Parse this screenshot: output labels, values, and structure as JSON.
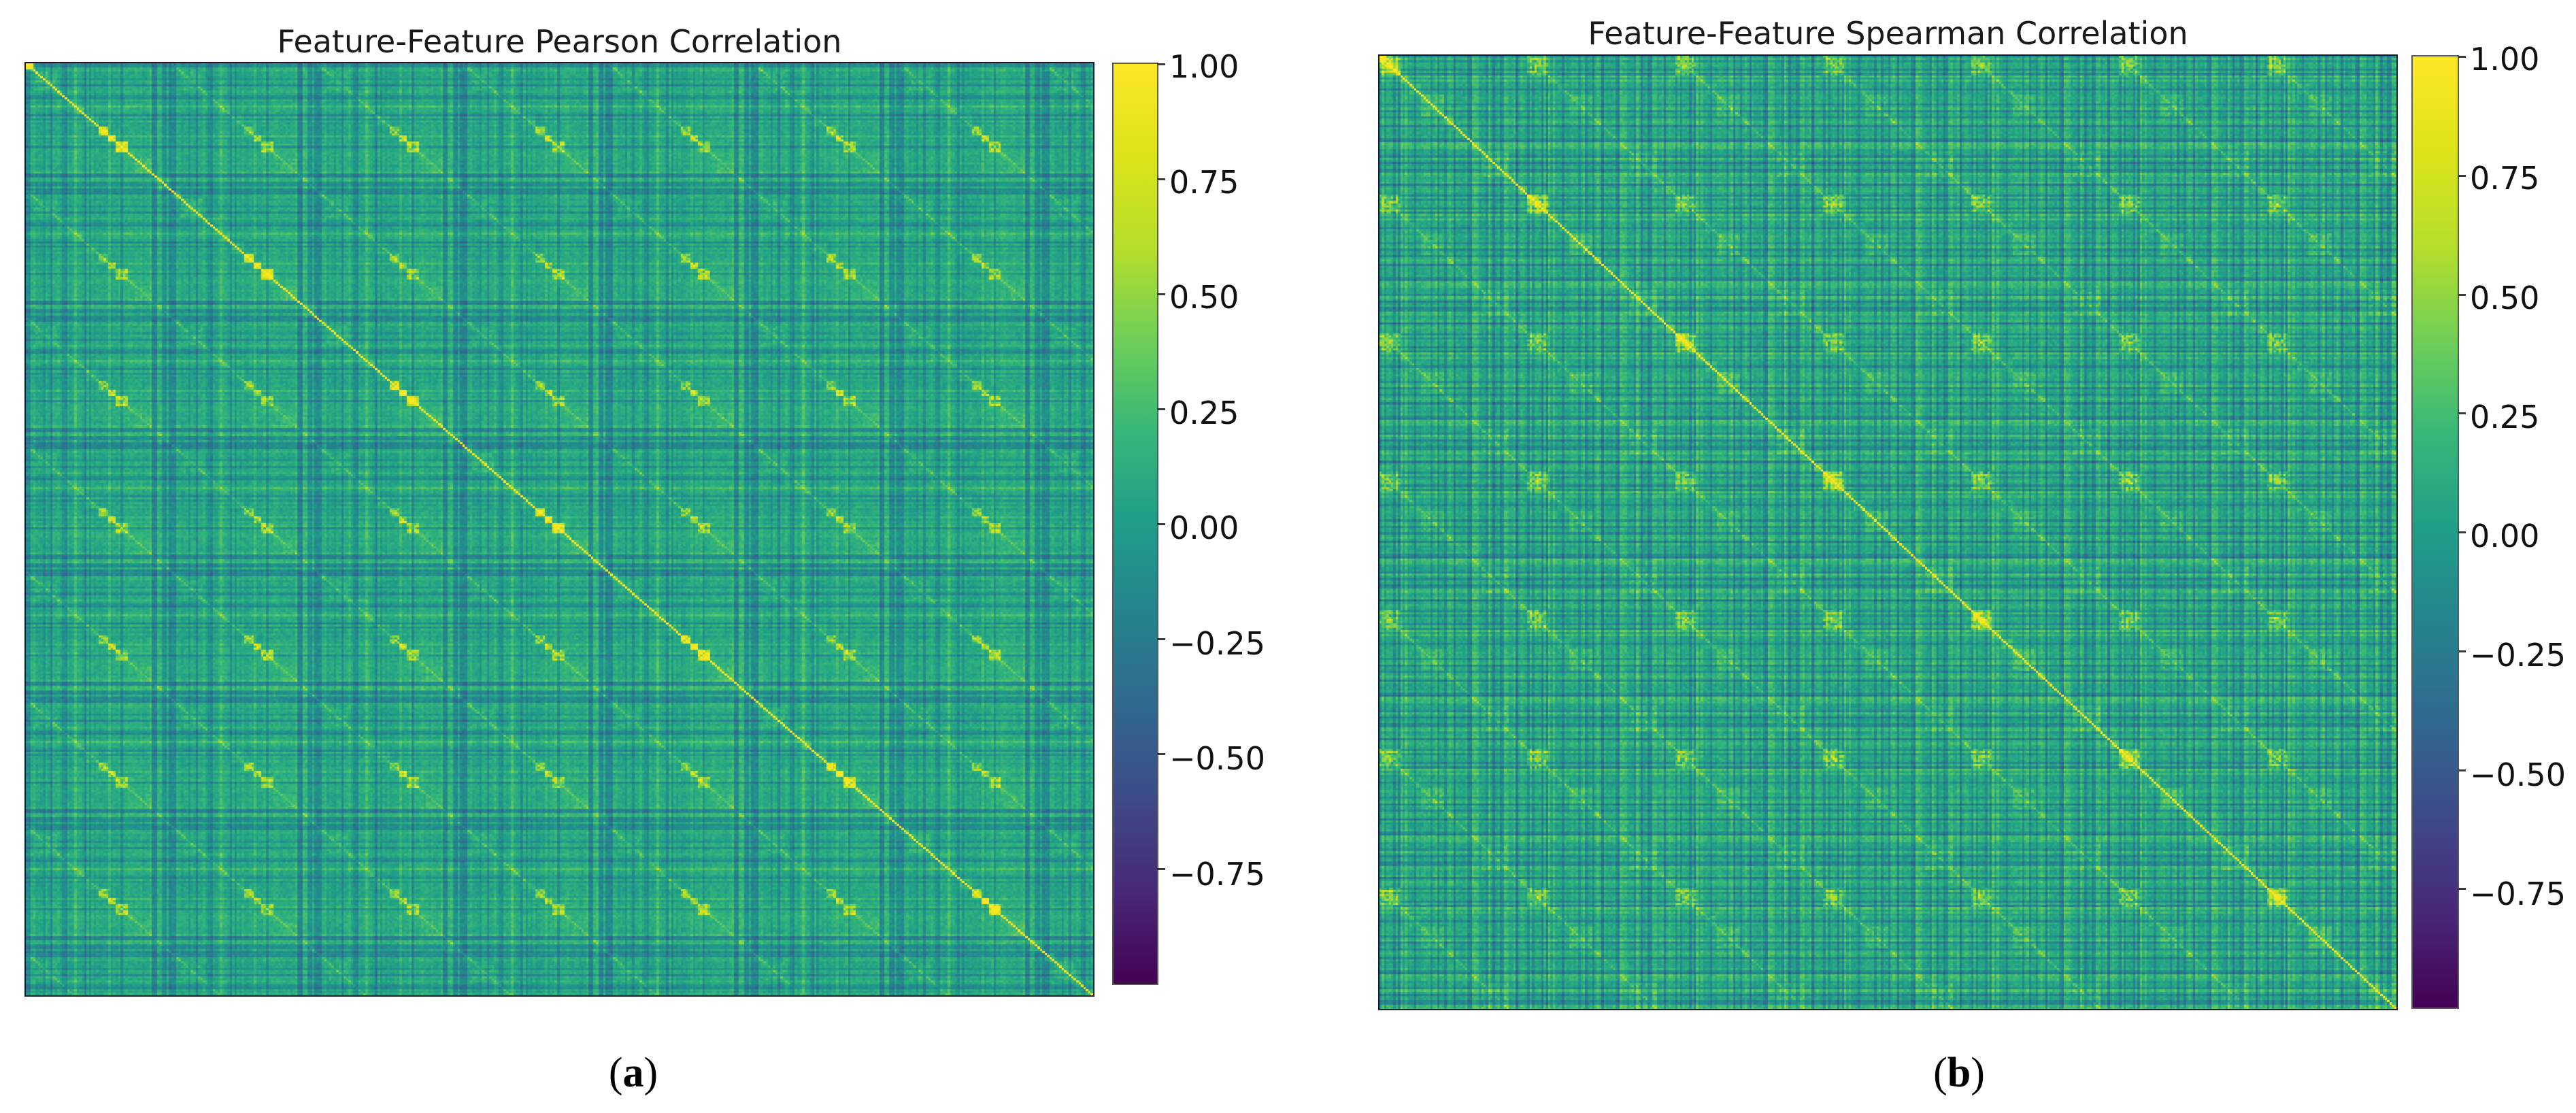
{
  "figure": {
    "background": "#ffffff",
    "panels": [
      {
        "id": "a",
        "title": "Feature-Feature Pearson Correlation",
        "caption_open": "(",
        "caption_letter": "a",
        "caption_close": ")",
        "colorbar_tick_labels": [
          "1.00",
          "0.75",
          "0.50",
          "0.25",
          "0.00",
          "−0.25",
          "−0.50",
          "−0.75"
        ]
      },
      {
        "id": "b",
        "title": "Feature-Feature Spearman Correlation",
        "caption_open": "(",
        "caption_letter": "b",
        "caption_close": ")",
        "colorbar_tick_labels": [
          "1.00",
          "0.75",
          "0.50",
          "0.25",
          "0.00",
          "−0.25",
          "−0.50",
          "−0.75"
        ]
      }
    ]
  },
  "chart_data": [
    {
      "type": "heatmap",
      "title": "Feature-Feature Pearson Correlation",
      "colormap": "viridis",
      "value_range": [
        -1.0,
        1.0
      ],
      "colorbar_ticks": [
        1.0,
        0.75,
        0.5,
        0.25,
        0.0,
        -0.25,
        -0.5,
        -0.75
      ],
      "n_features": 440,
      "diagonal_value": 1.0,
      "matrix_description": "Dense symmetric Pearson correlation matrix of ~440 features. Background correlations are weakly positive (≈0.0–0.2, teal). A periodic feature-group structure (~60-feature period) produces repeating bright green/yellow speckled blocks of strongly correlated features, dark blue rows/columns of negatively correlated features form a lattice, and the unit diagonal appears as a thin yellow line with a bright yellow cluster at the top-left corner.",
      "axis_tick_labels": "none",
      "legend": "vertical colorbar on right",
      "render_params": {
        "seed": 101,
        "period": 60,
        "base": 0.07,
        "contrast": 1.0
      }
    },
    {
      "type": "heatmap",
      "title": "Feature-Feature Spearman Correlation",
      "colormap": "viridis",
      "value_range": [
        -1.0,
        1.0
      ],
      "colorbar_ticks": [
        1.0,
        0.75,
        0.5,
        0.25,
        0.0,
        -0.25,
        -0.5,
        -0.75
      ],
      "n_features": 440,
      "diagonal_value": 1.0,
      "matrix_description": "Dense symmetric Spearman rank correlation matrix of the same ~440 features; structure mirrors the Pearson matrix — teal weakly-positive background, periodic bright correlated-group blocks, dark negative stripes, thin yellow unit diagonal and bright top-left cluster — with slightly stronger green contrast.",
      "axis_tick_labels": "none",
      "legend": "vertical colorbar on right",
      "render_params": {
        "seed": 777,
        "period": 64,
        "base": 0.08,
        "contrast": 1.08
      }
    }
  ]
}
